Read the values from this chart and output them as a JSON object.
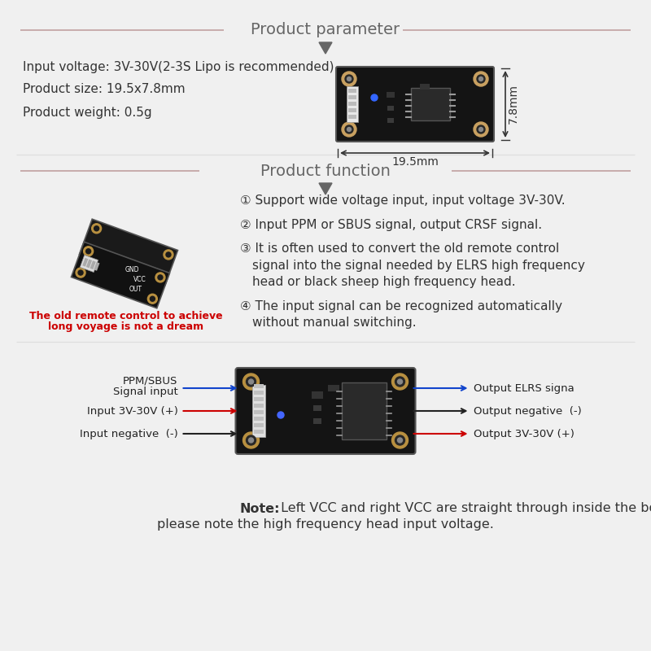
{
  "bg_color": "#f0f0f0",
  "title_color": "#666666",
  "text_color": "#333333",
  "red_color": "#cc0000",
  "blue_color": "#1144cc",
  "dark_color": "#222222",
  "section1_title": "Product parameter",
  "section2_title": "Product function",
  "param1": "Input voltage: 3V-30V(2-3S Lipo is recommended)",
  "param2": "Product size: 19.5x7.8mm",
  "param3": "Product weight: 0.5g",
  "dim_width": "19.5mm",
  "dim_height": "7.8mm",
  "func1": "① Support wide voltage input, input voltage 3V-30V.",
  "func2": "② Input PPM or SBUS signal, output CRSF signal.",
  "func3_1": "③ It is often used to convert the old remote control",
  "func3_2": "     signal into the signal needed by ELRS high frequency",
  "func3_3": "     head or black sheep high frequency head.",
  "func4_1": "④ The input signal can be recognized automatically",
  "func4_2": "     without manual switching.",
  "caption_line1": "The old remote control to achieve",
  "caption_line2": "long voyage is not a dream",
  "pin_ppm_line1": "PPM/SBUS",
  "pin_ppm_line2": "Signal input",
  "pin_3v30_pos": "Input 3V-30V (+)",
  "pin_neg": "Input negative  (-)",
  "pin_out_elrs": "Output ELRS signa",
  "pin_out_neg": "Output negative  (-)",
  "pin_out_3v30": "Output 3V-30V (+)",
  "note_line1": "Note: Left VCC and right VCC are straight through inside the board,",
  "note_line2": "please note the high frequency head input voltage.",
  "line_color": "#c0a0a0"
}
